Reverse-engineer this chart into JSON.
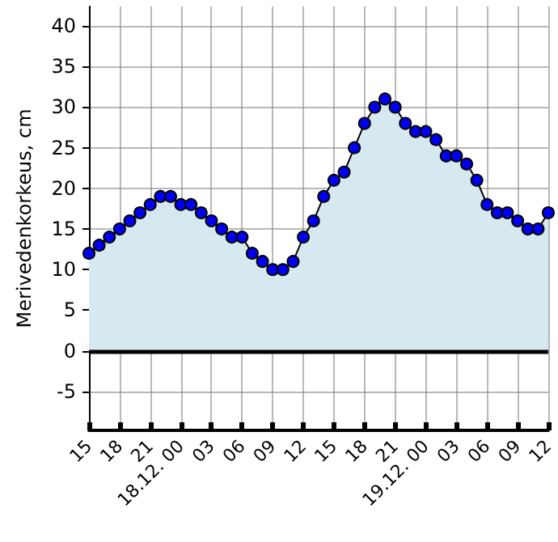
{
  "chart_data": {
    "type": "area",
    "ylabel": "Merivedenkorkeus, cm",
    "categories": [
      "15",
      null,
      null,
      "18",
      null,
      null,
      "21",
      null,
      null,
      "18.12. 00",
      null,
      null,
      "03",
      null,
      null,
      "06",
      null,
      null,
      "09",
      null,
      null,
      "12",
      null,
      null,
      "15",
      null,
      null,
      "18",
      null,
      null,
      "21",
      null,
      null,
      "19.12. 00",
      null,
      null,
      "03",
      null,
      null,
      "06",
      null,
      null,
      "09",
      null,
      null,
      "12"
    ],
    "series": [
      {
        "color": "#0000ee",
        "values": [
          12,
          13,
          14,
          15,
          16,
          17,
          18,
          19,
          19,
          18,
          18,
          17,
          16,
          15,
          14,
          14,
          12,
          11,
          10,
          10,
          11,
          14,
          16,
          19,
          21,
          22,
          25,
          28,
          30,
          31,
          30,
          28,
          27,
          27,
          26,
          24,
          24,
          23,
          21,
          18,
          17,
          17,
          16,
          15,
          15,
          17
        ]
      }
    ],
    "ylim": [
      -9.8,
      42.4
    ],
    "yticks": [
      -5,
      0,
      5,
      10,
      15,
      20,
      25,
      30,
      35,
      40
    ],
    "ref_lines": [
      {
        "axis": "y",
        "value": 0,
        "color": "#000000"
      }
    ],
    "grid": true,
    "marker": "circle",
    "line_style": "solid"
  }
}
